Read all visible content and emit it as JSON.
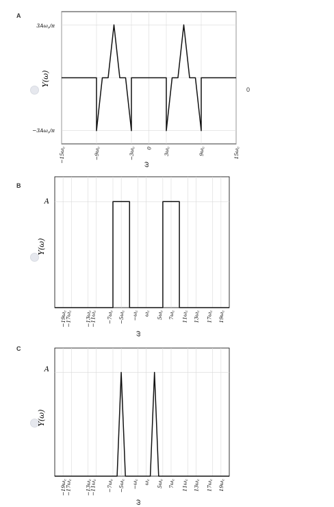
{
  "options": [
    {
      "letter": "A",
      "side_value": "0",
      "y_label": "Y(ω)",
      "x_label": "ω",
      "y_ticks": [
        "3Aω_c/π",
        "−3Aω_c/π"
      ],
      "x_ticks": [
        "−15ω_c",
        "−9ω_c",
        "−3ω_c",
        "0",
        "3ω_c",
        "9ω_c",
        "15ω_c"
      ],
      "chart_data": {
        "type": "line",
        "xlabel": "ω",
        "ylabel": "Y(ω)",
        "xlim": [
          -15,
          15
        ],
        "ylim": [
          -3,
          3
        ],
        "x_unit": "ω_c",
        "y_unit": "Aω_c/π",
        "grid": true,
        "x": [
          -15,
          -9,
          -9,
          -8,
          -7,
          -6,
          -5,
          -4,
          -3,
          -3,
          3,
          3,
          4,
          5,
          6,
          7,
          8,
          9,
          9,
          15
        ],
        "y": [
          0,
          0,
          -3,
          0,
          0,
          3,
          0,
          0,
          -3,
          0,
          0,
          -3,
          0,
          0,
          3,
          0,
          0,
          -3,
          0,
          0
        ]
      }
    },
    {
      "letter": "B",
      "y_label": "Y(ω)",
      "x_label": "ω",
      "y_ticks": [
        "A"
      ],
      "x_ticks_top": [
        "−19ω_c",
        "−13ω_c",
        "−5ω_c",
        "ω_c",
        "7ω_c",
        "13ω_c",
        "19ω_c"
      ],
      "x_ticks_bottom": [
        "−17ω_c",
        "−11ω_c",
        "−7ω_c",
        "−ω_c",
        "5ω_c",
        "11ω_c",
        "17ω_c"
      ],
      "chart_data": {
        "type": "line",
        "xlabel": "ω",
        "ylabel": "Y(ω)",
        "xlim": [
          -21,
          21
        ],
        "ylim": [
          0,
          1
        ],
        "x_unit": "ω_c",
        "y_unit": "A",
        "grid": true,
        "x": [
          -21,
          -7,
          -7,
          -3,
          -3,
          5,
          5,
          9,
          9,
          21
        ],
        "y": [
          0,
          0,
          1,
          1,
          0,
          0,
          1,
          1,
          0,
          0
        ]
      }
    },
    {
      "letter": "C",
      "y_label": "Y(ω)",
      "x_label": "ω",
      "y_ticks": [
        "A"
      ],
      "x_ticks_top": [
        "−19ω_c",
        "−13ω_c",
        "−5ω_c",
        "ω_c",
        "7ω_c",
        "13ω_c",
        "19ω_c"
      ],
      "x_ticks_bottom": [
        "−17ω_c",
        "−11ω_c",
        "−7ω_c",
        "−ω_c",
        "5ω_c",
        "11ω_c",
        "17ω_c"
      ],
      "chart_data": {
        "type": "line",
        "xlabel": "ω",
        "ylabel": "Y(ω)",
        "xlim": [
          -21,
          21
        ],
        "ylim": [
          0,
          1
        ],
        "x_unit": "ω_c",
        "y_unit": "A",
        "grid": true,
        "x": [
          -21,
          -6,
          -5,
          -4,
          2,
          3,
          4,
          21
        ],
        "y": [
          0,
          0,
          1,
          0,
          0,
          1,
          0,
          0
        ]
      }
    }
  ]
}
